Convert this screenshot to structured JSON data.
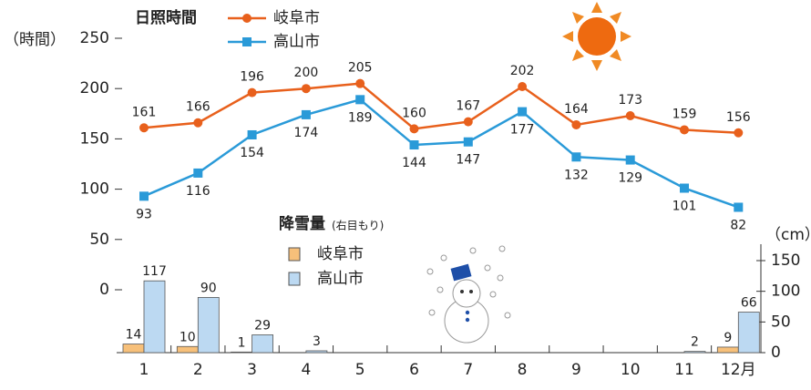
{
  "chart_data": [
    {
      "type": "line",
      "title": "日照時間",
      "y_label": "（時間）",
      "series": [
        {
          "name": "岐阜市",
          "color": "#e8601c",
          "marker": "circle",
          "values": [
            161,
            166,
            196,
            200,
            205,
            160,
            167,
            202,
            164,
            173,
            159,
            156
          ]
        },
        {
          "name": "高山市",
          "color": "#2a9ad8",
          "marker": "square",
          "values": [
            93,
            116,
            154,
            174,
            189,
            144,
            147,
            177,
            132,
            129,
            101,
            82
          ]
        }
      ],
      "ylim": [
        0,
        250
      ],
      "yticks": [
        0,
        50,
        100,
        150,
        200,
        250
      ]
    },
    {
      "type": "bar",
      "title": "降雪量",
      "subtitle": "(右目もり)",
      "y_label": "（cm）",
      "categories": [
        "1",
        "2",
        "3",
        "4",
        "5",
        "6",
        "7",
        "8",
        "9",
        "10",
        "11",
        "12月"
      ],
      "series": [
        {
          "name": "岐阜市",
          "color": "#f7c07a",
          "values": [
            14,
            10,
            1,
            null,
            null,
            null,
            null,
            null,
            null,
            null,
            null,
            9
          ]
        },
        {
          "name": "高山市",
          "color": "#bcd9f2",
          "values": [
            117,
            90,
            29,
            3,
            null,
            null,
            null,
            null,
            null,
            null,
            2,
            66
          ]
        }
      ],
      "ylim": [
        0,
        150
      ],
      "yticks": [
        0,
        50,
        100,
        150
      ]
    }
  ]
}
